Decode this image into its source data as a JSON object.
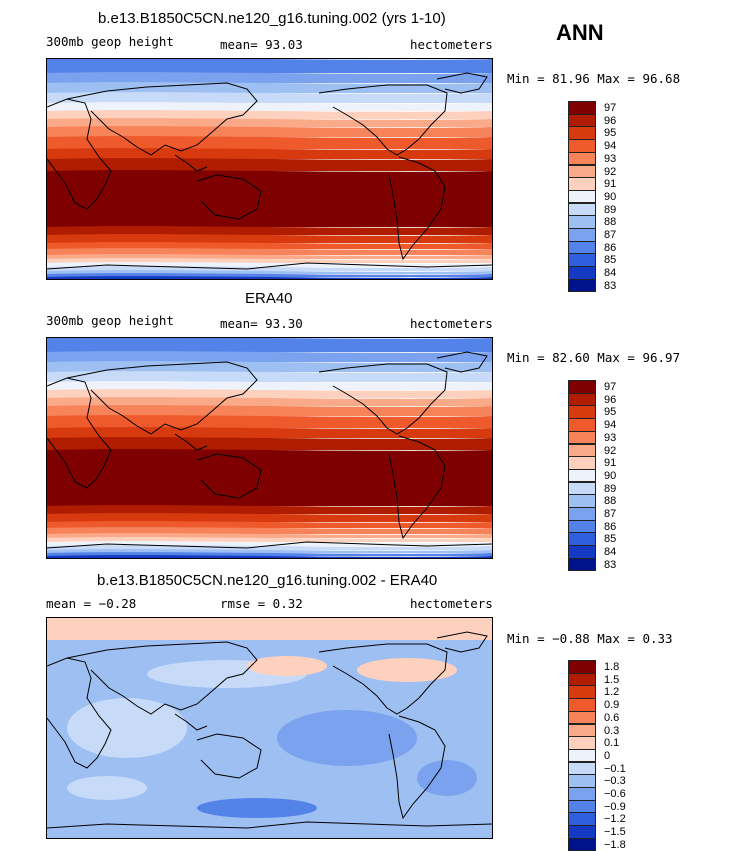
{
  "season": "ANN",
  "panels": [
    {
      "title": "b.e13.B1850C5CN.ne120_g16.tuning.002 (yrs 1-10)",
      "left_label": "300mb geop height",
      "center_label": "mean=   93.03",
      "units": "hectometers",
      "minmax": "Min =  81.96 Max =  96.68",
      "map_kind": "absolute",
      "colorbar": {
        "colors": [
          "#7f0000",
          "#b01c00",
          "#d83a10",
          "#ef5a2c",
          "#f7835a",
          "#fbaa89",
          "#fdd1be",
          "#eef3fb",
          "#c7daf7",
          "#9ebff2",
          "#7aa2ee",
          "#5383e8",
          "#2f5fdd",
          "#143ac4",
          "#00138a"
        ],
        "labels": [
          "97",
          "96",
          "95",
          "94",
          "93",
          "92",
          "91",
          "90",
          "89",
          "88",
          "87",
          "86",
          "85",
          "84",
          "83"
        ]
      }
    },
    {
      "title": "ERA40",
      "left_label": "300mb geop height",
      "center_label": "mean=   93.30",
      "units": "hectometers",
      "minmax": "Min =  82.60 Max =  96.97",
      "map_kind": "absolute",
      "colorbar": {
        "colors": [
          "#7f0000",
          "#b01c00",
          "#d83a10",
          "#ef5a2c",
          "#f7835a",
          "#fbaa89",
          "#fdd1be",
          "#eef3fb",
          "#c7daf7",
          "#9ebff2",
          "#7aa2ee",
          "#5383e8",
          "#2f5fdd",
          "#143ac4",
          "#00138a"
        ],
        "labels": [
          "97",
          "96",
          "95",
          "94",
          "93",
          "92",
          "91",
          "90",
          "89",
          "88",
          "87",
          "86",
          "85",
          "84",
          "83"
        ]
      }
    },
    {
      "title": "b.e13.B1850C5CN.ne120_g16.tuning.002 - ERA40",
      "left_label": "mean =  −0.28",
      "center_label": "rmse =    0.32",
      "units": "hectometers",
      "minmax": "Min =  −0.88 Max =   0.33",
      "map_kind": "difference",
      "colorbar": {
        "colors": [
          "#7f0000",
          "#b01c00",
          "#d83a10",
          "#ef5a2c",
          "#f7835a",
          "#fbaa89",
          "#fdd1be",
          "#eef3fb",
          "#c7daf7",
          "#9ebff2",
          "#7aa2ee",
          "#5383e8",
          "#2f5fdd",
          "#143ac4",
          "#00138a"
        ],
        "labels": [
          "1.8",
          "1.5",
          "1.2",
          "0.9",
          "0.6",
          "0.3",
          "0.1",
          "0",
          "−0.1",
          "−0.3",
          "−0.6",
          "−0.9",
          "−1.2",
          "−1.5",
          "−1.8"
        ]
      }
    }
  ]
}
